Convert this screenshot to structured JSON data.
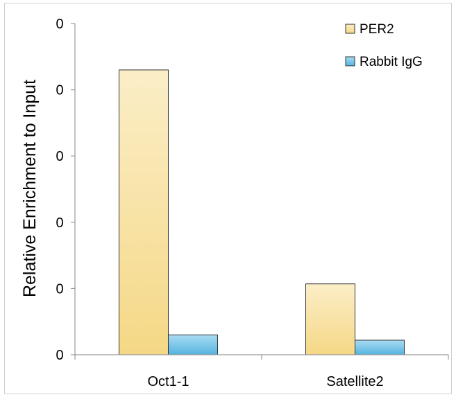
{
  "chart_data": {
    "type": "bar",
    "title": "",
    "xlabel": "",
    "ylabel": "Relative Enrichment to Input",
    "categories": [
      "Oct1-1",
      "Satellite2"
    ],
    "series": [
      {
        "name": "PER2",
        "values": [
          0.43,
          0.107
        ],
        "color": "#f7dc8e"
      },
      {
        "name": "Rabbit IgG",
        "values": [
          0.03,
          0.022
        ],
        "color": "#6fbfe6"
      }
    ],
    "y_ticks": [
      "0",
      "0",
      "0",
      "0",
      "0",
      "0"
    ],
    "ylim": [
      0,
      0.5
    ],
    "grid": false,
    "legend_position": "top-right"
  }
}
